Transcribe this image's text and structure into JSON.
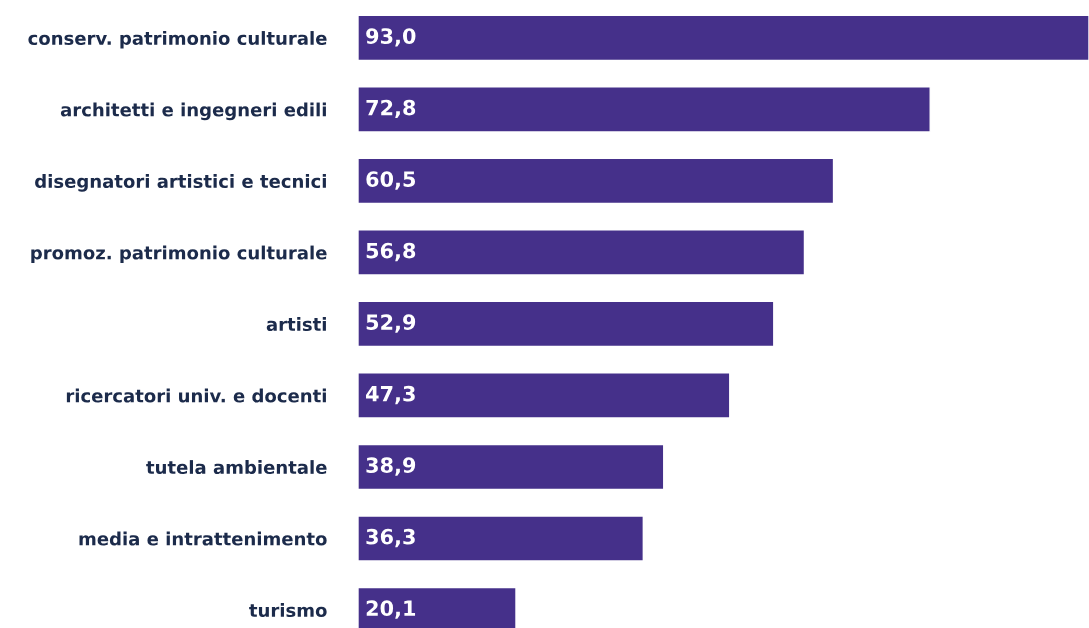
{
  "chart_data": {
    "type": "bar",
    "orientation": "horizontal",
    "categories": [
      "conserv. patrimonio culturale",
      "architetti e ingegneri edili",
      "disegnatori artistici e tecnici",
      "promoz. patrimonio culturale",
      "artisti",
      "ricercatori univ. e docenti",
      "tutela ambientale",
      "media e intrattenimento",
      "turismo"
    ],
    "values": [
      93.0,
      72.8,
      60.5,
      56.8,
      52.9,
      47.3,
      38.9,
      36.3,
      20.1
    ],
    "value_labels": [
      "93,0",
      "72,8",
      "60,5",
      "56,8",
      "52,9",
      "47,3",
      "38,9",
      "36,3",
      "20,1"
    ],
    "color": "#45308a",
    "xlim": [
      0,
      93
    ],
    "tick_labels": "y",
    "grid": false,
    "legend": false
  }
}
